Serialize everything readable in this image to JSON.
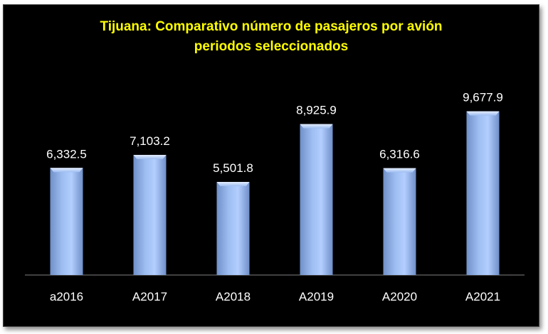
{
  "chart_data": {
    "type": "bar",
    "title_line1": "Tijuana: Comparativo número de pasajeros por avión",
    "title_line2": "periodos seleccionados",
    "categories": [
      "a2016",
      "A2017",
      "A2018",
      "A2019",
      "A2020",
      "A2021"
    ],
    "values": [
      6332.5,
      7103.2,
      5501.8,
      8925.9,
      6316.6,
      9677.9
    ],
    "value_labels": [
      "6,332.5",
      "7,103.2",
      "5,501.8",
      "8,925.9",
      "6,316.6",
      "9,677.9"
    ],
    "ylim": [
      0,
      10000
    ],
    "grid": false,
    "legend": "none",
    "colors": {
      "bar": "#9cbcf0",
      "background": "#000000",
      "title": "#ffff00",
      "text": "#ffffff",
      "axis": "#808080"
    }
  }
}
